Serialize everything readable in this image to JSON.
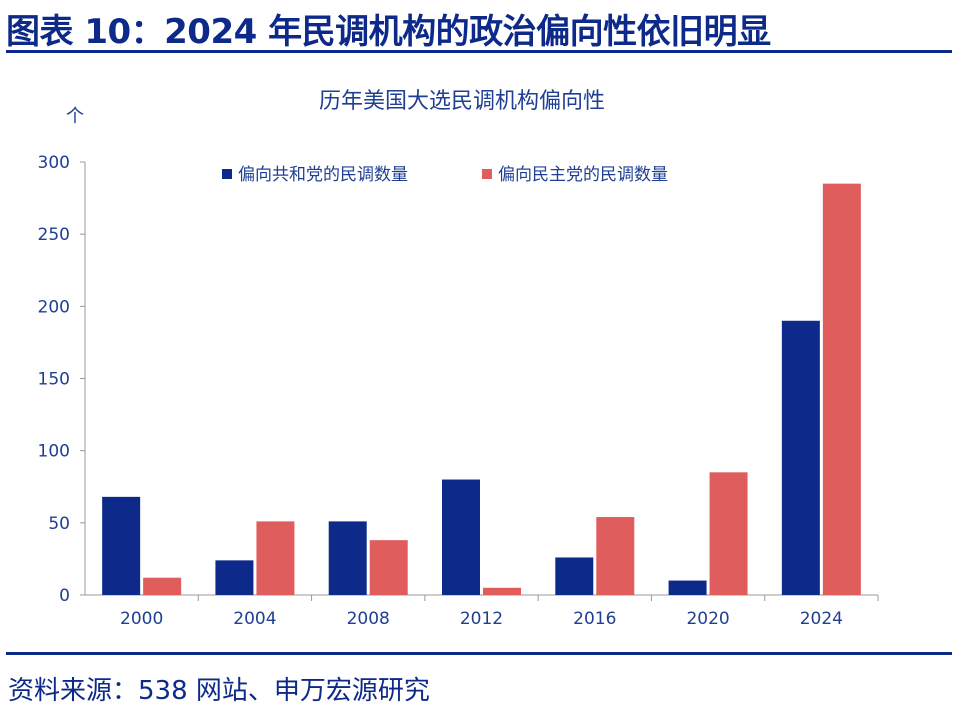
{
  "header": {
    "title": "图表 10：2024 年民调机构的政治偏向性依旧明显"
  },
  "footer": {
    "source": "资料来源：538 网站、申万宏源研究"
  },
  "chart_data": {
    "type": "bar",
    "title": "历年美国大选民调机构偏向性",
    "ylabel": "个",
    "xlabel": "",
    "categories": [
      "2000",
      "2004",
      "2008",
      "2012",
      "2016",
      "2020",
      "2024"
    ],
    "series": [
      {
        "name": "偏向共和党的民调数量",
        "color": "#0d2a8a",
        "values": [
          68,
          24,
          51,
          80,
          26,
          10,
          190
        ]
      },
      {
        "name": "偏向民主党的民调数量",
        "color": "#e05d5d",
        "values": [
          12,
          51,
          38,
          5,
          54,
          85,
          285
        ]
      }
    ],
    "ylim": [
      0,
      300
    ],
    "yticks": [
      0,
      50,
      100,
      150,
      200,
      250,
      300
    ],
    "grid": false,
    "legend": "top"
  }
}
